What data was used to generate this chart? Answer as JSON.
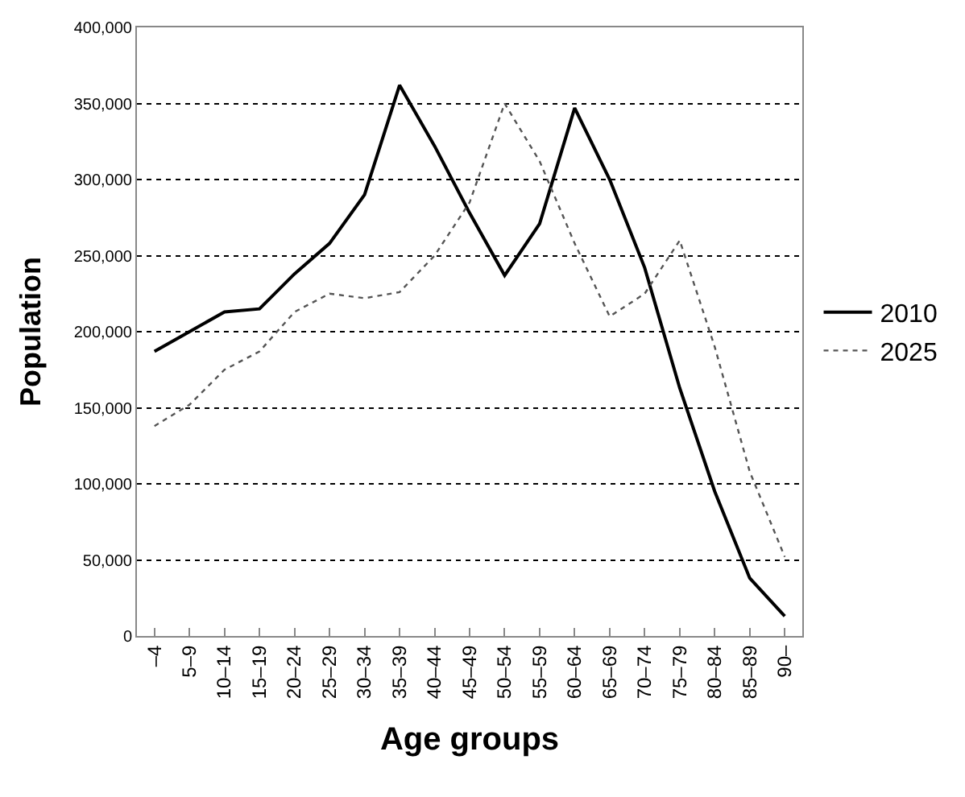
{
  "chart_data": {
    "type": "line",
    "xlabel": "Age groups",
    "ylabel": "Population",
    "categories": [
      "–4",
      "5–9",
      "10–14",
      "15–19",
      "20–24",
      "25–29",
      "30–34",
      "35–39",
      "40–44",
      "45–49",
      "50–54",
      "55–59",
      "60–64",
      "65–69",
      "70–74",
      "75–79",
      "80–84",
      "85–89",
      "90–"
    ],
    "series": [
      {
        "name": "2010",
        "color": "#000000",
        "line_style": "solid",
        "values": [
          187000,
          200000,
          213000,
          215000,
          238000,
          258000,
          290000,
          362000,
          322000,
          278000,
          237000,
          271000,
          347000,
          300000,
          242000,
          163000,
          95000,
          38000,
          13000
        ]
      },
      {
        "name": "2025",
        "color": "#555555",
        "line_style": "dotted",
        "values": [
          138000,
          152000,
          175000,
          187000,
          213000,
          225000,
          222000,
          226000,
          250000,
          285000,
          350000,
          312000,
          258000,
          210000,
          225000,
          260000,
          190000,
          108000,
          52000
        ]
      }
    ],
    "ylim": [
      0,
      400000
    ],
    "yticks": [
      {
        "value": 0,
        "label": "0"
      },
      {
        "value": 50000,
        "label": "50,000"
      },
      {
        "value": 100000,
        "label": "100,000"
      },
      {
        "value": 150000,
        "label": "150,000"
      },
      {
        "value": 200000,
        "label": "200,000"
      },
      {
        "value": 250000,
        "label": "250,000"
      },
      {
        "value": 300000,
        "label": "300,000"
      },
      {
        "value": 350000,
        "label": "350,000"
      },
      {
        "value": 400000,
        "label": "400,000"
      }
    ],
    "grid": "y",
    "legend": "right",
    "marker": "none"
  }
}
